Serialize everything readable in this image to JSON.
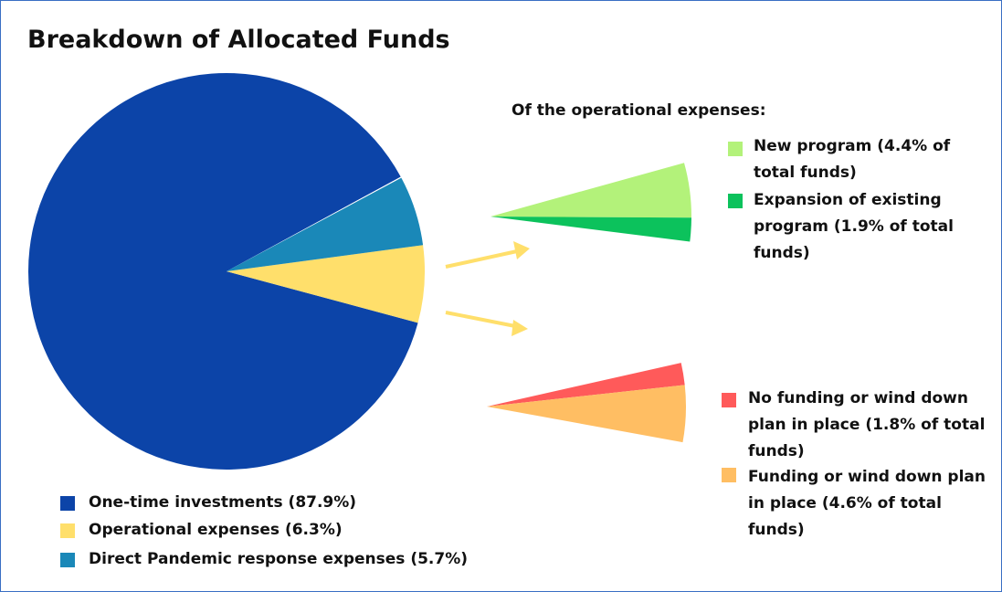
{
  "chart_data": [
    {
      "type": "pie",
      "title": "Breakdown of Allocated Funds",
      "categories": [
        "One-time investments (87.9%)",
        "Operational expenses (6.3%)",
        "Direct Pandemic response expenses (5.7%)"
      ],
      "values": [
        87.9,
        6.3,
        5.7
      ],
      "colors": [
        "#0c44a8",
        "#ffdf6b",
        "#1a88b8"
      ]
    },
    {
      "type": "pie",
      "subtitle": "Of the operational expenses:",
      "categories": [
        "New program (4.4% of total funds)",
        "Expansion of existing program (1.9% of total funds)"
      ],
      "values": [
        4.4,
        1.9
      ],
      "colors": [
        "#b3f27a",
        "#0cc25c"
      ]
    },
    {
      "type": "pie",
      "categories": [
        "No funding or wind down plan in place (1.8% of total funds)",
        "Funding or wind down plan in place (4.6% of total funds)"
      ],
      "values": [
        1.8,
        4.6
      ],
      "colors": [
        "#ff5a5a",
        "#ffbe63"
      ]
    }
  ]
}
